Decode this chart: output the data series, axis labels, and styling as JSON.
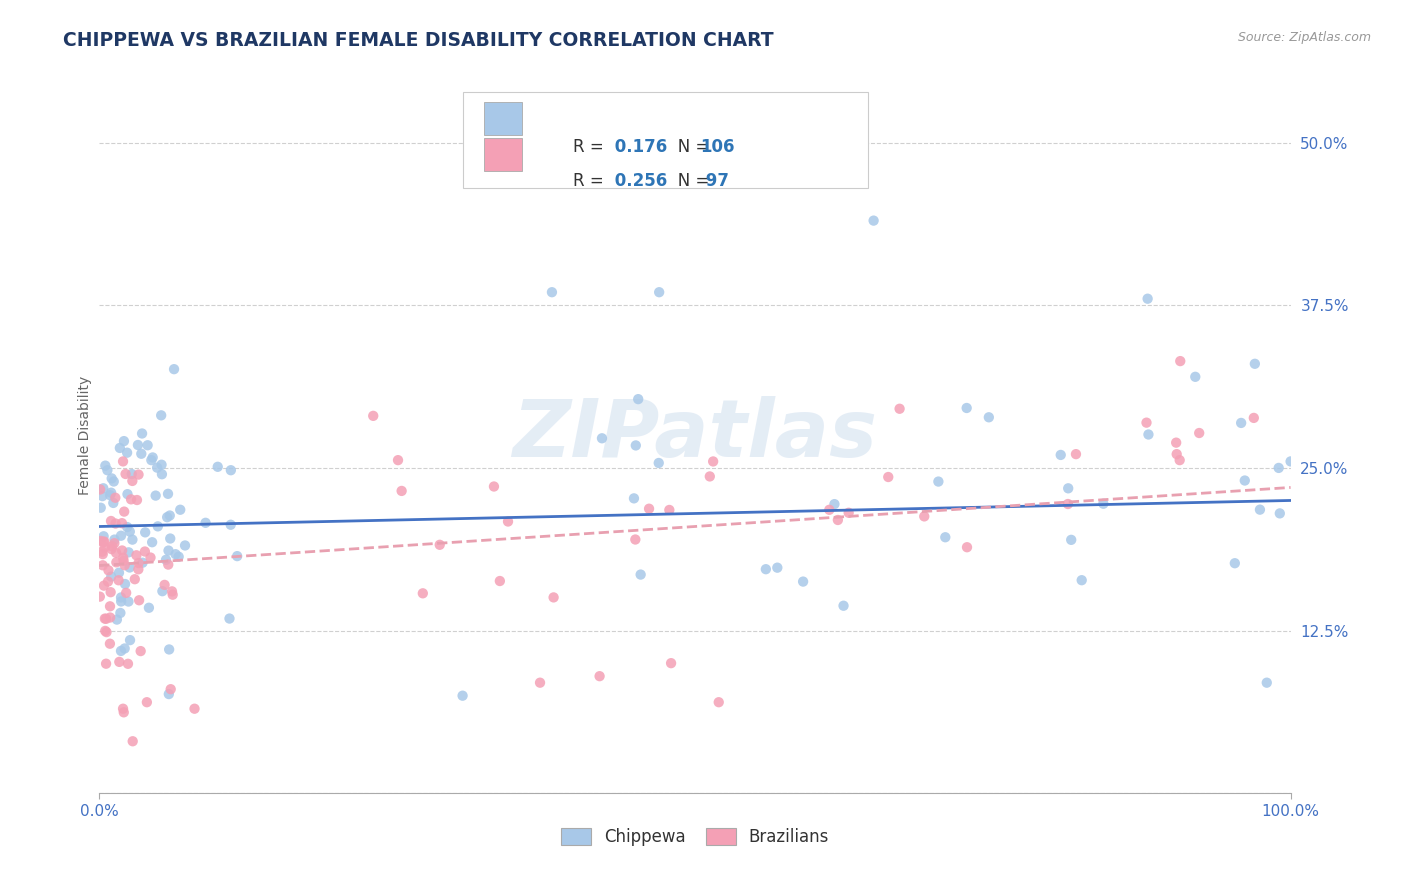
{
  "title": "CHIPPEWA VS BRAZILIAN FEMALE DISABILITY CORRELATION CHART",
  "source": "Source: ZipAtlas.com",
  "ylabel": "Female Disability",
  "watermark": "ZIPatlas",
  "chippewa_R": 0.176,
  "chippewa_N": 106,
  "brazilian_R": 0.256,
  "brazilian_N": 97,
  "chippewa_color": "#a8c8e8",
  "brazilian_color": "#f4a0b5",
  "chippewa_line_color": "#4472c4",
  "brazilian_line_color": "#e8a0b0",
  "title_color": "#1f3864",
  "source_color": "#999999",
  "tick_color": "#4472c4",
  "ylabel_color": "#666666",
  "background_color": "#ffffff",
  "grid_color": "#d0d0d0",
  "legend_edge_color": "#cccccc",
  "xlim": [
    0.0,
    1.0
  ],
  "ylim": [
    0.0,
    0.55
  ],
  "yticks": [
    0.0,
    0.125,
    0.25,
    0.375,
    0.5
  ],
  "ytick_labels": [
    "",
    "12.5%",
    "25.0%",
    "37.5%",
    "50.0%"
  ],
  "xtick_labels": [
    "0.0%",
    "100.0%"
  ]
}
